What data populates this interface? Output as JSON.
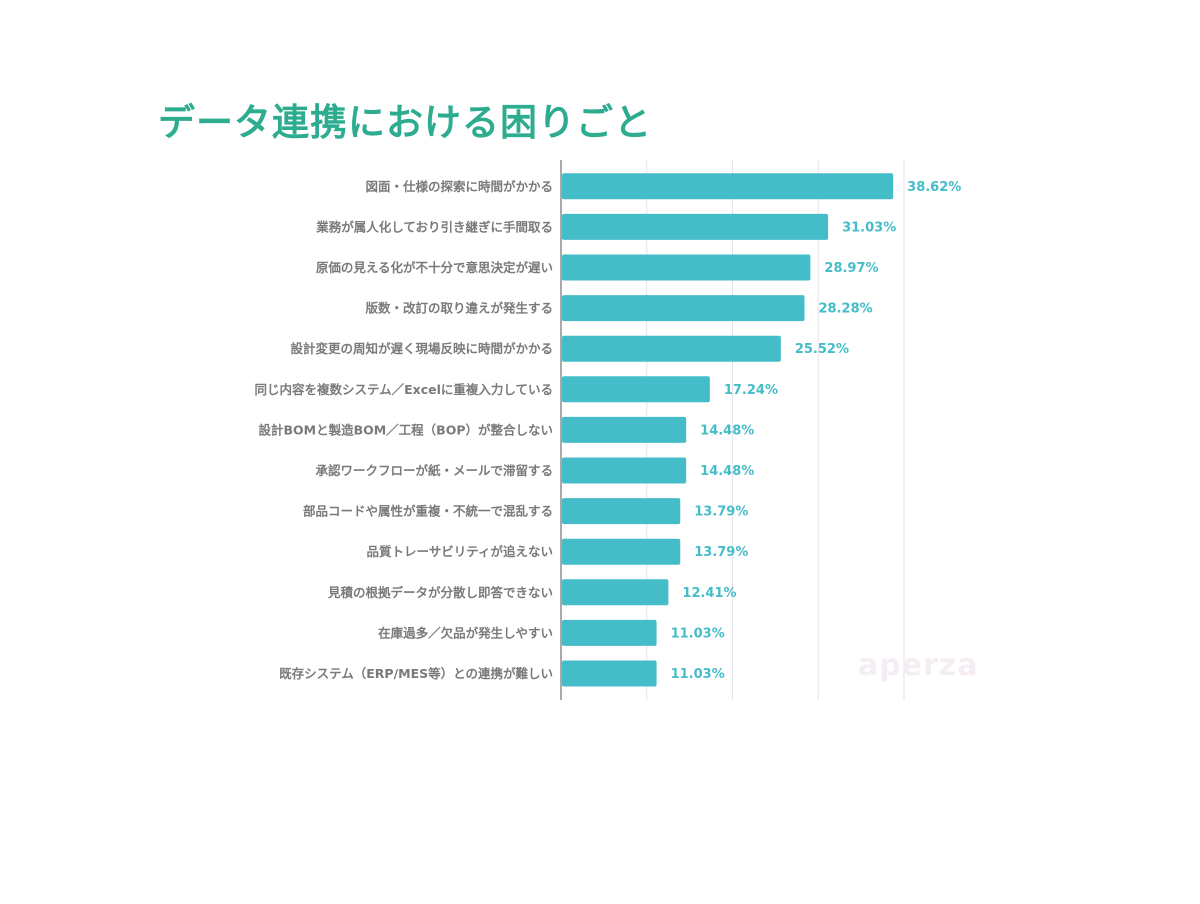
{
  "title": "データ連携における困りごと",
  "watermark": "aperza",
  "chart_data": {
    "type": "bar",
    "orientation": "horizontal",
    "title": "データ連携における困りごと",
    "categories": [
      "図面・仕様の探索に時間がかかる",
      "業務が属人化しており引き継ぎに手間取る",
      "原価の見える化が不十分で意思決定が遅い",
      "版数・改訂の取り違えが発生する",
      "設計変更の周知が遅く現場反映に時間がかかる",
      "同じ内容を複数システム／Excelに重複入力している",
      "設計BOMと製造BOM／工程（BOP）が整合しない",
      "承認ワークフローが紙・メールで滞留する",
      "部品コードや属性が重複・不統一で混乱する",
      "品質トレーサビリティが追えない",
      "見積の根拠データが分散し即答できない",
      "在庫過多／欠品が発生しやすい",
      "既存システム（ERP/MES等）との連携が難しい"
    ],
    "values": [
      38.62,
      31.03,
      28.97,
      28.28,
      25.52,
      17.24,
      14.48,
      14.48,
      13.79,
      13.79,
      12.41,
      11.03,
      11.03
    ],
    "value_labels": [
      "38.62%",
      "31.03%",
      "28.97%",
      "28.28%",
      "25.52%",
      "17.24%",
      "14.48%",
      "14.48%",
      "13.79%",
      "13.79%",
      "12.41%",
      "11.03%",
      "11.03%"
    ],
    "unit": "%",
    "xlim": [
      0,
      40
    ],
    "grid": true,
    "bar_color": "#45bdc8",
    "label_color": "#45bdc8",
    "title_color": "#2eac8f"
  }
}
